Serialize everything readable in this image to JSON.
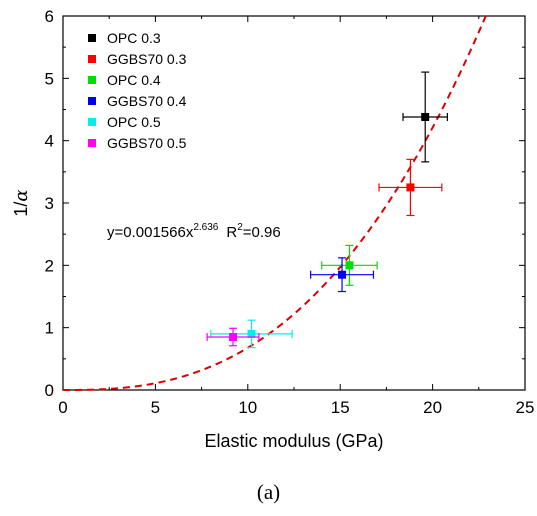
{
  "chart_data": {
    "type": "scatter",
    "xlabel": "Elastic modulus (GPa)",
    "ylabel_prefix": "1/",
    "ylabel_symbol": "α",
    "xlim": [
      0,
      25
    ],
    "ylim": [
      0,
      6
    ],
    "x_ticks": [
      "0",
      "5",
      "10",
      "15",
      "20",
      "25"
    ],
    "y_ticks": [
      "0",
      "1",
      "2",
      "3",
      "4",
      "5",
      "6"
    ],
    "grid": false,
    "legend_position": "top-left",
    "series": [
      {
        "name": "OPC 0.3",
        "color": "#000000",
        "x": 19.6,
        "y": 4.38,
        "xerr": 1.2,
        "yerr": 0.72
      },
      {
        "name": "GGBS70 0.3",
        "color": "#ff0000",
        "x": 18.8,
        "y": 3.25,
        "xerr": 1.7,
        "yerr": 0.45
      },
      {
        "name": "OPC 0.4",
        "color": "#00dd00",
        "x": 15.5,
        "y": 2.0,
        "xerr": 1.5,
        "yerr": 0.32
      },
      {
        "name": "GGBS70 0.4",
        "color": "#0000ee",
        "x": 15.1,
        "y": 1.85,
        "xerr": 1.7,
        "yerr": 0.27
      },
      {
        "name": "OPC 0.5",
        "color": "#00eeee",
        "x": 10.2,
        "y": 0.9,
        "xerr": 2.2,
        "yerr": 0.22
      },
      {
        "name": "GGBS70 0.5",
        "color": "#ff00ff",
        "x": 9.2,
        "y": 0.85,
        "xerr": 1.4,
        "yerr": 0.14
      }
    ],
    "fit": {
      "color": "#dd0000",
      "coefficient": 0.001566,
      "exponent": 2.636,
      "equation_base": "y=0.001566x",
      "equation_exp": "2.636",
      "r2_base": "R",
      "r2_exp": "2",
      "r2_value": "=0.96"
    }
  },
  "caption": "(a)"
}
